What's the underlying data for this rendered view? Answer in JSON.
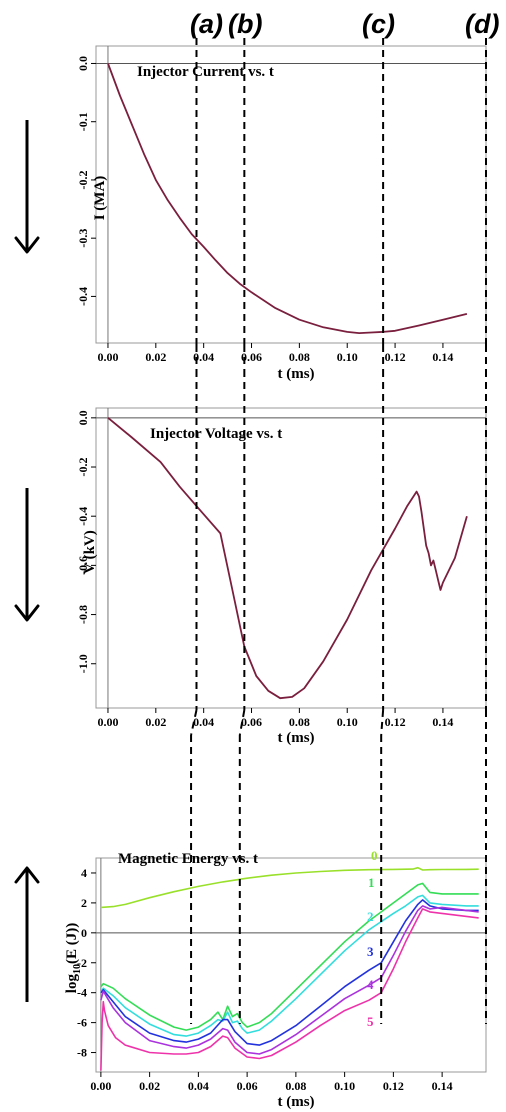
{
  "markers": {
    "labels": [
      "(a)",
      "(b)",
      "(c)",
      "(d)"
    ],
    "t": [
      0.037,
      0.057,
      0.115,
      0.158
    ]
  },
  "arrows": [
    "down",
    "down",
    "up"
  ],
  "chart_data": [
    {
      "type": "line",
      "title": "Injector Current vs. t",
      "xlabel": "t (ms)",
      "ylabel": "I (MA)",
      "xlim": [
        -0.005,
        0.158
      ],
      "ylim": [
        -0.48,
        0.03
      ],
      "xticks": [
        0.0,
        0.02,
        0.04,
        0.06,
        0.08,
        0.1,
        0.12,
        0.14
      ],
      "xtick_labels": [
        "0.00",
        "0.02",
        "0.04",
        "0.06",
        "0.08",
        "0.10",
        "0.12",
        "0.14"
      ],
      "yticks": [
        0.0,
        -0.1,
        -0.2,
        -0.3,
        -0.4
      ],
      "ytick_labels": [
        "0.0",
        "-0.1",
        "-0.2",
        "-0.3",
        "-0.4"
      ],
      "series": [
        {
          "color": "#7a1f3d",
          "x": [
            0.0,
            0.005,
            0.01,
            0.015,
            0.02,
            0.025,
            0.03,
            0.035,
            0.04,
            0.045,
            0.05,
            0.055,
            0.06,
            0.07,
            0.08,
            0.09,
            0.1,
            0.105,
            0.11,
            0.115,
            0.12,
            0.13,
            0.14,
            0.15
          ],
          "y": [
            0.0,
            -0.055,
            -0.105,
            -0.155,
            -0.2,
            -0.235,
            -0.265,
            -0.293,
            -0.315,
            -0.338,
            -0.36,
            -0.378,
            -0.393,
            -0.42,
            -0.44,
            -0.453,
            -0.461,
            -0.463,
            -0.462,
            -0.461,
            -0.459,
            -0.45,
            -0.44,
            -0.43
          ]
        }
      ]
    },
    {
      "type": "line",
      "title": "Injector Voltage vs. t",
      "xlabel": "t (ms)",
      "ylabel": "V (kV)",
      "xlim": [
        -0.005,
        0.158
      ],
      "ylim": [
        -1.18,
        0.04
      ],
      "xticks": [
        0.0,
        0.02,
        0.04,
        0.06,
        0.08,
        0.1,
        0.12,
        0.14
      ],
      "xtick_labels": [
        "0.00",
        "0.02",
        "0.04",
        "0.06",
        "0.08",
        "0.10",
        "0.12",
        "0.14"
      ],
      "yticks": [
        0.0,
        -0.2,
        -0.4,
        -0.6,
        -0.8,
        -1.0
      ],
      "ytick_labels": [
        "0.0",
        "-0.2",
        "-0.4",
        "-0.6",
        "-0.8",
        "-1.0"
      ],
      "series": [
        {
          "color": "#7a1f3d",
          "x": [
            0.0,
            0.01,
            0.022,
            0.03,
            0.038,
            0.047,
            0.052,
            0.057,
            0.062,
            0.067,
            0.072,
            0.077,
            0.082,
            0.09,
            0.1,
            0.11,
            0.12,
            0.125,
            0.129,
            0.13,
            0.131,
            0.132,
            0.133,
            0.134,
            0.135,
            0.136,
            0.137,
            0.138,
            0.139,
            0.14,
            0.145,
            0.15
          ],
          "y": [
            0.0,
            -0.08,
            -0.18,
            -0.28,
            -0.37,
            -0.47,
            -0.7,
            -0.93,
            -1.05,
            -1.11,
            -1.14,
            -1.135,
            -1.1,
            -0.99,
            -0.82,
            -0.62,
            -0.45,
            -0.36,
            -0.3,
            -0.32,
            -0.38,
            -0.45,
            -0.52,
            -0.55,
            -0.6,
            -0.58,
            -0.62,
            -0.66,
            -0.7,
            -0.67,
            -0.57,
            -0.4
          ]
        }
      ]
    },
    {
      "type": "line",
      "title": "Magnetic Energy vs. t",
      "xlabel": "t (ms)",
      "ylabel": "log10(E (J))",
      "xlim": [
        -0.002,
        0.158
      ],
      "ylim": [
        -9.3,
        5.0
      ],
      "xticks": [
        0.0,
        0.02,
        0.04,
        0.06,
        0.08,
        0.1,
        0.12,
        0.14
      ],
      "xtick_labels": [
        "0.00",
        "0.02",
        "0.04",
        "0.06",
        "0.08",
        "0.10",
        "0.12",
        "0.14"
      ],
      "yticks": [
        4,
        2,
        0,
        -2,
        -4,
        -6,
        -8
      ],
      "ytick_labels": [
        "4",
        "2",
        "0",
        "-2",
        "-4",
        "-6",
        "-8"
      ],
      "series": [
        {
          "name": "0",
          "color": "#99e02a",
          "x": [
            0.0,
            0.005,
            0.01,
            0.02,
            0.03,
            0.04,
            0.05,
            0.06,
            0.07,
            0.08,
            0.09,
            0.1,
            0.11,
            0.12,
            0.128,
            0.13,
            0.132,
            0.135,
            0.14,
            0.15,
            0.155
          ],
          "y": [
            1.7,
            1.75,
            1.9,
            2.35,
            2.75,
            3.1,
            3.4,
            3.65,
            3.85,
            4.0,
            4.1,
            4.18,
            4.22,
            4.24,
            4.26,
            4.35,
            4.2,
            4.22,
            4.23,
            4.24,
            4.25
          ]
        },
        {
          "name": "1",
          "color": "#33dd55",
          "x": [
            0.0,
            0.001,
            0.005,
            0.01,
            0.02,
            0.03,
            0.035,
            0.04,
            0.045,
            0.048,
            0.05,
            0.052,
            0.054,
            0.056,
            0.058,
            0.06,
            0.065,
            0.07,
            0.08,
            0.09,
            0.1,
            0.11,
            0.12,
            0.125,
            0.13,
            0.132,
            0.135,
            0.14,
            0.15,
            0.155
          ],
          "y": [
            -3.6,
            -3.4,
            -3.7,
            -4.4,
            -5.5,
            -6.3,
            -6.5,
            -6.3,
            -5.8,
            -5.3,
            -5.8,
            -4.9,
            -5.6,
            -5.4,
            -6.0,
            -6.3,
            -6.0,
            -5.4,
            -3.8,
            -2.2,
            -0.6,
            0.8,
            2.0,
            2.6,
            3.2,
            3.3,
            2.7,
            2.6,
            2.6,
            2.6
          ]
        },
        {
          "name": "2",
          "color": "#33dddd",
          "x": [
            0.0,
            0.001,
            0.005,
            0.01,
            0.02,
            0.03,
            0.035,
            0.04,
            0.045,
            0.048,
            0.05,
            0.052,
            0.054,
            0.056,
            0.058,
            0.06,
            0.065,
            0.07,
            0.08,
            0.09,
            0.1,
            0.11,
            0.12,
            0.125,
            0.13,
            0.132,
            0.135,
            0.14,
            0.15,
            0.155
          ],
          "y": [
            -4.0,
            -3.7,
            -4.2,
            -5.0,
            -6.1,
            -6.8,
            -6.9,
            -6.7,
            -6.2,
            -5.8,
            -5.9,
            -5.3,
            -6.0,
            -5.9,
            -6.4,
            -6.7,
            -6.5,
            -5.9,
            -4.4,
            -2.8,
            -1.2,
            0.2,
            1.3,
            1.8,
            2.4,
            2.5,
            2.0,
            1.9,
            1.8,
            1.8
          ]
        },
        {
          "name": "3",
          "color": "#2233dd",
          "x": [
            0.0,
            0.001,
            0.005,
            0.01,
            0.02,
            0.03,
            0.035,
            0.04,
            0.045,
            0.05,
            0.052,
            0.055,
            0.06,
            0.065,
            0.07,
            0.08,
            0.09,
            0.1,
            0.11,
            0.115,
            0.12,
            0.125,
            0.13,
            0.132,
            0.135,
            0.14,
            0.15,
            0.155
          ],
          "y": [
            -4.0,
            -3.8,
            -4.6,
            -5.6,
            -6.7,
            -7.2,
            -7.3,
            -7.1,
            -6.7,
            -5.8,
            -5.8,
            -6.6,
            -7.4,
            -7.5,
            -7.2,
            -6.2,
            -4.9,
            -3.6,
            -2.5,
            -2.0,
            -0.6,
            0.8,
            1.9,
            2.2,
            1.8,
            1.6,
            1.5,
            1.5
          ]
        },
        {
          "name": "4",
          "color": "#aa33dd",
          "x": [
            0.0,
            0.001,
            0.005,
            0.01,
            0.02,
            0.03,
            0.035,
            0.04,
            0.045,
            0.05,
            0.052,
            0.055,
            0.06,
            0.065,
            0.07,
            0.08,
            0.09,
            0.1,
            0.11,
            0.115,
            0.12,
            0.125,
            0.13,
            0.132,
            0.135,
            0.14,
            0.15,
            0.155
          ],
          "y": [
            -4.5,
            -3.9,
            -5.0,
            -6.0,
            -7.2,
            -7.6,
            -7.7,
            -7.5,
            -7.1,
            -6.4,
            -6.5,
            -7.3,
            -8.0,
            -8.1,
            -7.8,
            -6.8,
            -5.6,
            -4.4,
            -3.5,
            -3.0,
            -1.5,
            0.1,
            1.5,
            1.8,
            1.6,
            1.7,
            1.5,
            1.4
          ]
        },
        {
          "name": "5",
          "color": "#ee33aa",
          "x": [
            0.0,
            0.0005,
            0.001,
            0.0015,
            0.003,
            0.006,
            0.01,
            0.02,
            0.03,
            0.035,
            0.04,
            0.045,
            0.05,
            0.052,
            0.055,
            0.06,
            0.065,
            0.07,
            0.08,
            0.09,
            0.1,
            0.11,
            0.115,
            0.12,
            0.125,
            0.13,
            0.132,
            0.135,
            0.14,
            0.15,
            0.155
          ],
          "y": [
            -9.2,
            -6.0,
            -4.6,
            -5.2,
            -6.2,
            -7.0,
            -7.5,
            -8.0,
            -8.1,
            -8.1,
            -8.0,
            -7.6,
            -6.9,
            -7.0,
            -7.7,
            -8.3,
            -8.4,
            -8.2,
            -7.3,
            -6.2,
            -5.2,
            -4.5,
            -4.0,
            -2.4,
            -0.6,
            1.0,
            1.6,
            1.4,
            1.3,
            1.1,
            1.0
          ]
        }
      ]
    }
  ]
}
